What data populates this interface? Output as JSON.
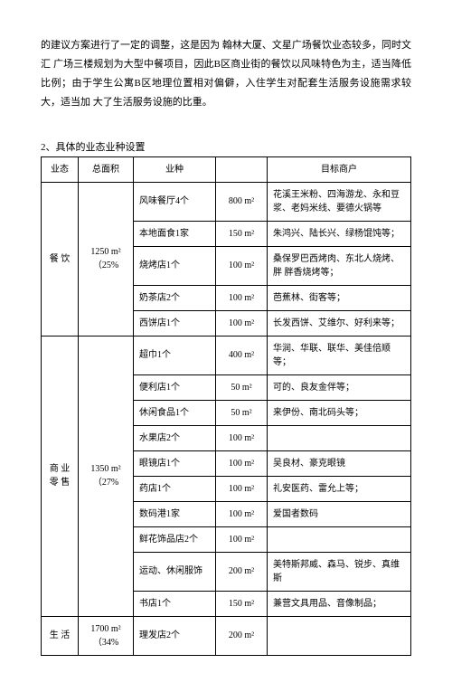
{
  "intro": "的建议方案进行了一定的调整，这是因为 翰林大厦、文星广场餐饮业态较多，同时文汇 广场三楼规划为大型中餐项目，因此B区商业街的餐饮以风味特色为主，适当降低比例；由于学生公寓B区地理位置相对偏僻，入住学生对配套生活服务设施需求较大，适当加 大了生活服务设施的比重。",
  "section_title": "2、具体的业态业种设置",
  "headers": {
    "type": "业态",
    "area": "总面积",
    "biz": "业种",
    "size": "",
    "target": "目标商户"
  },
  "group1": {
    "type": "餐 饮",
    "area": "1250 m²\n（25%",
    "rows": [
      {
        "biz": "风味餐厅4个",
        "size": "800 m²",
        "target": "花溪王米粉、四海游龙、永和豆浆、老妈米线、要德火锅等"
      },
      {
        "biz": "本地面食1家",
        "size": "150 m²",
        "target": "朱鸿兴、陆长兴、绿杨馄饨等；"
      },
      {
        "biz": "烧烤店1个",
        "size": "100 m²",
        "target": "桑保罗巴西烤肉、东北人烧烤、胖 胖香烧烤等；"
      },
      {
        "biz": "奶茶店2个",
        "size": "100 m²",
        "target": "芭蕉林、街客等；"
      },
      {
        "biz": "西饼店1个",
        "size": "100 m²",
        "target": "长发西饼、艾维尔、好利来等；"
      }
    ]
  },
  "group2": {
    "type": "商 业\n零 售",
    "area": "1350 m²\n（27%",
    "rows": [
      {
        "biz": "超巾1个",
        "size": "400 m²",
        "target": "华润、华联、联华、美佳倍顺等；"
      },
      {
        "biz": "便利店1个",
        "size": "50 m²",
        "target": "可的、良友金伴等；"
      },
      {
        "biz": "休闲食品1个",
        "size": "50 m²",
        "target": "来伊份、南北码头等；"
      },
      {
        "biz": "水果店2个",
        "size": "100 m²",
        "target": ""
      },
      {
        "biz": "眼镜店1个",
        "size": "100 m²",
        "target": "吴良材、豪克眼镜"
      },
      {
        "biz": "药店1个",
        "size": "100 m²",
        "target": "礼安医药、雷允上等；"
      },
      {
        "biz": "数码港1家",
        "size": "100 m²",
        "target": "爱国者数码"
      },
      {
        "biz": "鲜花饰品店2个",
        "size": "100 m²",
        "target": ""
      },
      {
        "biz": "运动、休闲服饰",
        "size": "200 m²",
        "target": "美特斯邦威、森马、锐步、真维斯"
      },
      {
        "biz": "书店1个",
        "size": "150 m²",
        "target": "兼营文具用品、音像制品；"
      }
    ]
  },
  "group3": {
    "type": "生 活",
    "area": "1700 m²\n（34%",
    "rows": [
      {
        "biz": "理发店2个",
        "size": "200 m²",
        "target": ""
      }
    ]
  }
}
